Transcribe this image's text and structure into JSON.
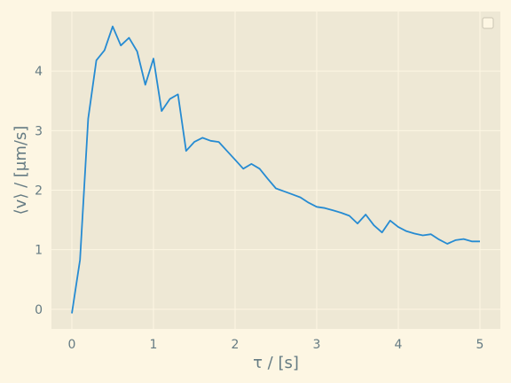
{
  "chart_data": {
    "type": "line",
    "title": "",
    "xlabel": "τ / [s]",
    "ylabel": "⟨v⟩ / [μm/s]",
    "xlim": [
      -0.25,
      5.25
    ],
    "ylim": [
      -0.33,
      5.0
    ],
    "xticks": [
      0,
      1,
      2,
      3,
      4,
      5
    ],
    "yticks": [
      0,
      1,
      2,
      3,
      4
    ],
    "grid": true,
    "legend": "top-right (empty)",
    "colors": {
      "background": "#fdf6e3",
      "axes": "#eee8d5",
      "grid": "#fdf6e3",
      "line": "#268bd2",
      "text": "#657b83"
    },
    "series": [
      {
        "x": [
          0.0,
          0.1,
          0.2,
          0.3,
          0.4,
          0.5,
          0.6,
          0.7,
          0.8,
          0.9,
          1.0,
          1.1,
          1.2,
          1.3,
          1.4,
          1.5,
          1.6,
          1.7,
          1.8,
          1.9,
          2.0,
          2.1,
          2.2,
          2.3,
          2.4,
          2.5,
          2.6,
          2.7,
          2.8,
          2.9,
          3.0,
          3.1,
          3.2,
          3.3,
          3.4,
          3.5,
          3.6,
          3.7,
          3.8,
          3.9,
          4.0,
          4.1,
          4.2,
          4.3,
          4.4,
          4.5,
          4.6,
          4.7,
          4.8,
          4.9,
          5.0
        ],
        "y": [
          -0.07,
          0.83,
          3.2,
          4.18,
          4.35,
          4.75,
          4.43,
          4.56,
          4.33,
          3.77,
          4.21,
          3.33,
          3.53,
          3.61,
          2.66,
          2.81,
          2.88,
          2.83,
          2.81,
          2.66,
          2.51,
          2.36,
          2.44,
          2.36,
          2.19,
          2.03,
          1.98,
          1.93,
          1.88,
          1.79,
          1.72,
          1.7,
          1.66,
          1.62,
          1.57,
          1.44,
          1.59,
          1.41,
          1.29,
          1.49,
          1.38,
          1.31,
          1.27,
          1.24,
          1.26,
          1.17,
          1.1,
          1.16,
          1.18,
          1.14,
          1.14
        ]
      }
    ]
  }
}
